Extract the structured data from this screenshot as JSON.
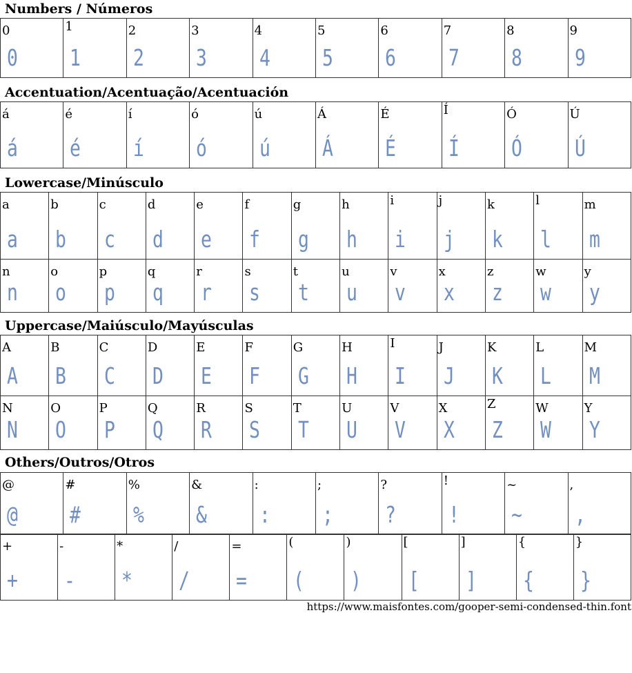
{
  "sections": [
    {
      "title": "Numbers / Números",
      "rows": [
        [
          "0",
          "1",
          "2",
          "3",
          "4",
          "5",
          "6",
          "7",
          "8",
          "9"
        ]
      ]
    },
    {
      "title": "Accentuation/Acentuação/Acentuación",
      "rows": [
        [
          "á",
          "é",
          "í",
          "ó",
          "ú",
          "Á",
          "É",
          "Í",
          "Ó",
          "Ú"
        ]
      ]
    },
    {
      "title": "Lowercase/Minúsculo",
      "rows": [
        [
          "a",
          "b",
          "c",
          "d",
          "e",
          "f",
          "g",
          "h",
          "i",
          "j",
          "k",
          "l",
          "m"
        ],
        [
          "n",
          "o",
          "p",
          "q",
          "r",
          "s",
          "t",
          "u",
          "v",
          "x",
          "z",
          "w",
          "y"
        ]
      ]
    },
    {
      "title": "Uppercase/Maiúsculo/Mayúsculas",
      "rows": [
        [
          "A",
          "B",
          "C",
          "D",
          "E",
          "F",
          "G",
          "H",
          "I",
          "J",
          "K",
          "L",
          "M"
        ],
        [
          "N",
          "O",
          "P",
          "Q",
          "R",
          "S",
          "T",
          "U",
          "V",
          "X",
          "Z",
          "W",
          "Y"
        ]
      ]
    },
    {
      "title": "Others/Outros/Otros",
      "rows": [
        [
          "@",
          "#",
          "%",
          "&",
          ":",
          ";",
          "?",
          "!",
          "~",
          ","
        ]
      ]
    },
    {
      "title": "",
      "rows": [
        [
          "+",
          "-",
          "*",
          "/",
          "=",
          "(",
          ")",
          "[",
          "]",
          "{",
          "}"
        ]
      ]
    }
  ],
  "footer": "https://www.maisfontes.com/gooper-semi-condensed-thin.font",
  "colors": {
    "glyph": "#5a7db5",
    "border": "#333333"
  }
}
